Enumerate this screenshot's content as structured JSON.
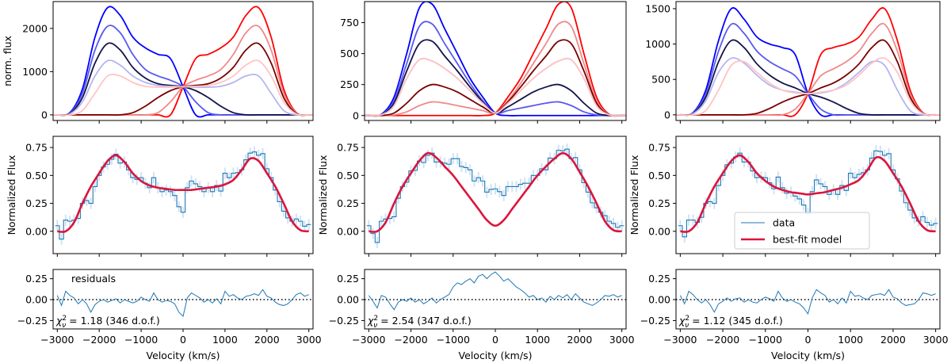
{
  "chart_data": [
    {
      "type": "line",
      "panel": "col1-top",
      "ylabel": "norm. flux",
      "xlim": [
        -3100,
        3100
      ],
      "ylim": [
        -130,
        2620
      ],
      "yticks": [
        0,
        1000,
        2000
      ],
      "x": [
        -3000,
        -2700,
        -2400,
        -2100,
        -1800,
        -1500,
        -1200,
        -900,
        -600,
        -300,
        0,
        300,
        600,
        900,
        1200,
        1500,
        1800,
        2100,
        2400,
        2700,
        3000
      ],
      "series": [
        {
          "color": "#0000ff",
          "values": [
            0,
            50,
            600,
            1800,
            2480,
            2300,
            1800,
            1550,
            1400,
            1300,
            650,
            0,
            0,
            0,
            0,
            0,
            0,
            0,
            0,
            0,
            0
          ]
        },
        {
          "color": "#5a5af0",
          "values": [
            0,
            40,
            500,
            1500,
            2050,
            1900,
            1400,
            1050,
            900,
            800,
            650,
            300,
            50,
            0,
            0,
            0,
            0,
            0,
            0,
            0,
            0
          ]
        },
        {
          "color": "#14144a",
          "values": [
            0,
            30,
            400,
            1200,
            1650,
            1500,
            1100,
            850,
            720,
            680,
            650,
            560,
            400,
            200,
            50,
            0,
            0,
            0,
            0,
            0,
            0
          ]
        },
        {
          "color": "#b4b4f4",
          "values": [
            0,
            20,
            300,
            900,
            1250,
            1150,
            900,
            750,
            680,
            660,
            650,
            640,
            640,
            660,
            750,
            900,
            900,
            500,
            100,
            0,
            0
          ]
        },
        {
          "color": "#ff0000",
          "values": [
            0,
            0,
            0,
            0,
            0,
            0,
            0,
            0,
            0,
            0,
            650,
            1300,
            1400,
            1550,
            1800,
            2300,
            2480,
            1800,
            600,
            50,
            0
          ]
        },
        {
          "color": "#f08a8a",
          "values": [
            0,
            0,
            0,
            0,
            0,
            0,
            0,
            0,
            50,
            300,
            650,
            800,
            900,
            1050,
            1400,
            1900,
            2050,
            1500,
            500,
            40,
            0
          ]
        },
        {
          "color": "#7a0000",
          "values": [
            0,
            0,
            0,
            0,
            0,
            0,
            50,
            200,
            400,
            560,
            650,
            680,
            720,
            850,
            1100,
            1500,
            1650,
            1200,
            400,
            30,
            0
          ]
        },
        {
          "color": "#ffc4c4",
          "values": [
            0,
            0,
            100,
            500,
            900,
            900,
            750,
            660,
            640,
            640,
            650,
            660,
            680,
            750,
            900,
            1150,
            1250,
            900,
            300,
            20,
            0
          ]
        }
      ]
    },
    {
      "type": "line",
      "panel": "col2-top",
      "xlim": [
        -3100,
        3100
      ],
      "ylim": [
        -40,
        920
      ],
      "yticks": [
        0,
        250,
        500,
        750
      ],
      "x": [
        -3000,
        -2700,
        -2400,
        -2100,
        -1800,
        -1500,
        -1200,
        -900,
        -600,
        -300,
        0,
        300,
        600,
        900,
        1200,
        1500,
        1800,
        2100,
        2400,
        2700,
        3000
      ],
      "series": [
        {
          "color": "#0000ff",
          "values": [
            0,
            10,
            150,
            500,
            870,
            900,
            700,
            500,
            300,
            150,
            20,
            0,
            0,
            0,
            0,
            0,
            0,
            0,
            0,
            0,
            0
          ]
        },
        {
          "color": "#5a5af0",
          "values": [
            0,
            8,
            120,
            420,
            720,
            740,
            580,
            420,
            260,
            120,
            20,
            40,
            60,
            80,
            100,
            110,
            80,
            30,
            5,
            0,
            0
          ]
        },
        {
          "color": "#14144a",
          "values": [
            0,
            6,
            100,
            360,
            580,
            600,
            480,
            360,
            230,
            110,
            20,
            70,
            130,
            190,
            230,
            250,
            200,
            100,
            20,
            0,
            0
          ]
        },
        {
          "color": "#b4b4f4",
          "values": [
            0,
            5,
            80,
            300,
            450,
            440,
            380,
            300,
            200,
            100,
            20,
            100,
            200,
            300,
            380,
            440,
            450,
            300,
            80,
            5,
            0
          ]
        },
        {
          "color": "#ff0000",
          "values": [
            0,
            0,
            0,
            0,
            0,
            0,
            0,
            0,
            0,
            0,
            20,
            150,
            300,
            500,
            700,
            900,
            870,
            500,
            150,
            10,
            0
          ]
        },
        {
          "color": "#f08a8a",
          "values": [
            0,
            0,
            5,
            30,
            80,
            110,
            100,
            80,
            60,
            40,
            20,
            120,
            260,
            420,
            580,
            740,
            720,
            420,
            120,
            8,
            0
          ]
        },
        {
          "color": "#7a0000",
          "values": [
            0,
            0,
            20,
            100,
            200,
            250,
            230,
            190,
            130,
            70,
            20,
            110,
            230,
            360,
            480,
            600,
            580,
            360,
            100,
            6,
            0
          ]
        },
        {
          "color": "#ffc4c4",
          "values": [
            0,
            5,
            80,
            300,
            450,
            440,
            380,
            300,
            200,
            100,
            20,
            100,
            200,
            300,
            380,
            440,
            450,
            300,
            80,
            5,
            0
          ]
        }
      ]
    },
    {
      "type": "line",
      "panel": "col3-top",
      "xlim": [
        -3100,
        3100
      ],
      "ylim": [
        -80,
        1600
      ],
      "yticks": [
        0,
        500,
        1000,
        1500
      ],
      "x": [
        -3000,
        -2700,
        -2400,
        -2100,
        -1800,
        -1500,
        -1200,
        -900,
        -600,
        -300,
        0,
        300,
        600,
        900,
        1200,
        1500,
        1800,
        2100,
        2400,
        2700,
        3000
      ],
      "series": [
        {
          "color": "#0000ff",
          "values": [
            0,
            30,
            350,
            1050,
            1500,
            1350,
            1100,
            1000,
            950,
            850,
            300,
            0,
            0,
            0,
            0,
            0,
            0,
            0,
            0,
            0,
            0
          ]
        },
        {
          "color": "#5a5af0",
          "values": [
            0,
            25,
            300,
            900,
            1280,
            1150,
            900,
            750,
            650,
            550,
            300,
            80,
            0,
            0,
            0,
            0,
            0,
            0,
            0,
            0,
            0
          ]
        },
        {
          "color": "#14144a",
          "values": [
            0,
            20,
            250,
            750,
            1050,
            950,
            720,
            560,
            450,
            380,
            300,
            250,
            180,
            90,
            20,
            0,
            0,
            0,
            0,
            0,
            0
          ]
        },
        {
          "color": "#b4b4f4",
          "values": [
            0,
            15,
            200,
            600,
            800,
            730,
            560,
            420,
            350,
            320,
            300,
            310,
            350,
            450,
            600,
            750,
            700,
            350,
            60,
            0,
            0
          ]
        },
        {
          "color": "#ff0000",
          "values": [
            0,
            0,
            0,
            0,
            0,
            0,
            0,
            0,
            0,
            0,
            300,
            850,
            950,
            1000,
            1100,
            1350,
            1500,
            1050,
            350,
            30,
            0
          ]
        },
        {
          "color": "#f08a8a",
          "values": [
            0,
            0,
            0,
            0,
            0,
            0,
            0,
            0,
            0,
            80,
            300,
            550,
            650,
            750,
            900,
            1150,
            1280,
            900,
            300,
            25,
            0
          ]
        },
        {
          "color": "#7a0000",
          "values": [
            0,
            0,
            0,
            0,
            0,
            0,
            20,
            90,
            180,
            250,
            300,
            380,
            450,
            560,
            720,
            950,
            1050,
            750,
            250,
            20,
            0
          ]
        },
        {
          "color": "#ffc4c4",
          "values": [
            0,
            0,
            60,
            350,
            700,
            750,
            600,
            450,
            350,
            310,
            300,
            320,
            350,
            420,
            560,
            730,
            800,
            600,
            200,
            15,
            0
          ]
        }
      ]
    },
    {
      "type": "line",
      "panel": "middle",
      "ylabel": "Normalized Flux",
      "xlim": [
        -3100,
        3100
      ],
      "ylim": [
        -0.2,
        0.85
      ],
      "yticks": [
        "0.00",
        "0.25",
        "0.50",
        "0.75"
      ],
      "legend": {
        "placement": "lower-center",
        "panel": 3,
        "entries": [
          {
            "label": "data",
            "color": "#1f77b4"
          },
          {
            "label": "best-fit model",
            "color": "#dc143c"
          }
        ]
      },
      "model_x": [
        -3000,
        -2800,
        -2600,
        -2400,
        -2200,
        -2000,
        -1800,
        -1600,
        -1400,
        -1200,
        -1000,
        -800,
        -600,
        -400,
        -200,
        0,
        200,
        400,
        600,
        800,
        1000,
        1200,
        1400,
        1600,
        1800,
        2000,
        2200,
        2400,
        2600,
        2800,
        3000
      ],
      "models": [
        [
          0,
          0,
          0.08,
          0.25,
          0.4,
          0.52,
          0.63,
          0.68,
          0.62,
          0.52,
          0.45,
          0.41,
          0.39,
          0.38,
          0.37,
          0.37,
          0.37,
          0.38,
          0.39,
          0.4,
          0.42,
          0.46,
          0.55,
          0.65,
          0.63,
          0.52,
          0.4,
          0.25,
          0.09,
          0.01,
          0
        ],
        [
          0,
          0,
          0.08,
          0.25,
          0.4,
          0.52,
          0.63,
          0.7,
          0.66,
          0.58,
          0.5,
          0.4,
          0.3,
          0.2,
          0.1,
          0.05,
          0.1,
          0.2,
          0.3,
          0.4,
          0.5,
          0.58,
          0.65,
          0.7,
          0.65,
          0.53,
          0.4,
          0.25,
          0.09,
          0.01,
          0
        ],
        [
          0,
          0,
          0.08,
          0.25,
          0.4,
          0.52,
          0.63,
          0.68,
          0.62,
          0.52,
          0.45,
          0.4,
          0.37,
          0.35,
          0.34,
          0.33,
          0.34,
          0.35,
          0.37,
          0.39,
          0.42,
          0.46,
          0.55,
          0.66,
          0.63,
          0.52,
          0.4,
          0.25,
          0.09,
          0.01,
          0
        ]
      ]
    },
    {
      "type": "line",
      "panel": "bottom",
      "xlabel": "Velocity (km/s)",
      "annotation": "residuals",
      "xlim": [
        -3100,
        3100
      ],
      "ylim": [
        -0.35,
        0.36
      ],
      "yticks": [
        "0.25",
        "0.00",
        "−0.25"
      ],
      "xticks": [
        "−3000",
        "−2000",
        "−1000",
        "0",
        "1000",
        "2000",
        "3000"
      ],
      "x_start": -3000,
      "x_step": 100,
      "residuals": [
        [
          0.05,
          -0.07,
          0.1,
          0.05,
          0.02,
          -0.05,
          0.0,
          -0.05,
          -0.15,
          -0.06,
          -0.02,
          0.0,
          -0.03,
          -0.01,
          0.01,
          -0.04,
          0.0,
          -0.02,
          -0.04,
          -0.02,
          0.03,
          0.0,
          -0.02,
          0.08,
          0.0,
          -0.03,
          -0.01,
          -0.02,
          -0.05,
          -0.15,
          -0.2,
          0.02,
          0.08,
          0.05,
          0.02,
          -0.03,
          0.0,
          -0.04,
          0.01,
          -0.05,
          0.1,
          0.04,
          0.06,
          0.02,
          0.0,
          0.04,
          0.05,
          0.07,
          0.05,
          0.12,
          0.04,
          0.02,
          -0.03,
          -0.06,
          -0.07,
          -0.05,
          0.0,
          0.06,
          0.08,
          0.04,
          0.06
        ],
        [
          0.05,
          -0.02,
          -0.1,
          0.05,
          0.03,
          -0.05,
          -0.12,
          -0.03,
          0.0,
          -0.02,
          0.02,
          -0.03,
          0.0,
          -0.05,
          -0.02,
          0.02,
          -0.04,
          0.0,
          0.03,
          0.06,
          0.15,
          0.2,
          0.18,
          0.22,
          0.25,
          0.2,
          0.28,
          0.3,
          0.25,
          0.3,
          0.33,
          0.28,
          0.22,
          0.25,
          0.2,
          0.15,
          0.12,
          0.08,
          0.03,
          0.05,
          0.0,
          0.02,
          -0.03,
          0.04,
          0.0,
          0.05,
          0.02,
          0.06,
          0.0,
          0.07,
          0.02,
          -0.03,
          -0.05,
          -0.07,
          -0.04,
          0.0,
          0.05,
          0.04,
          0.06,
          0.03,
          0.05
        ],
        [
          0.05,
          -0.05,
          0.1,
          0.06,
          0.0,
          -0.04,
          0.0,
          -0.06,
          -0.15,
          -0.05,
          -0.02,
          0.02,
          -0.02,
          0.01,
          0.02,
          -0.03,
          0.0,
          -0.03,
          -0.04,
          0.0,
          0.03,
          0.01,
          -0.02,
          0.1,
          0.02,
          -0.02,
          0.0,
          -0.03,
          -0.05,
          -0.1,
          -0.17,
          0.02,
          0.12,
          0.08,
          0.05,
          -0.03,
          0.0,
          -0.05,
          0.02,
          -0.04,
          0.1,
          0.04,
          0.05,
          0.02,
          0.0,
          0.05,
          0.06,
          0.07,
          0.05,
          0.12,
          0.03,
          0.01,
          -0.04,
          -0.07,
          -0.06,
          -0.05,
          0.0,
          0.08,
          0.07,
          0.05,
          0.07
        ]
      ],
      "fit_stats": [
        {
          "chi2": "1.18",
          "dof": "(346 d.o.f.)"
        },
        {
          "chi2": "2.54",
          "dof": "(347 d.o.f.)"
        },
        {
          "chi2": "1.12",
          "dof": "(345 d.o.f.)"
        }
      ]
    }
  ]
}
